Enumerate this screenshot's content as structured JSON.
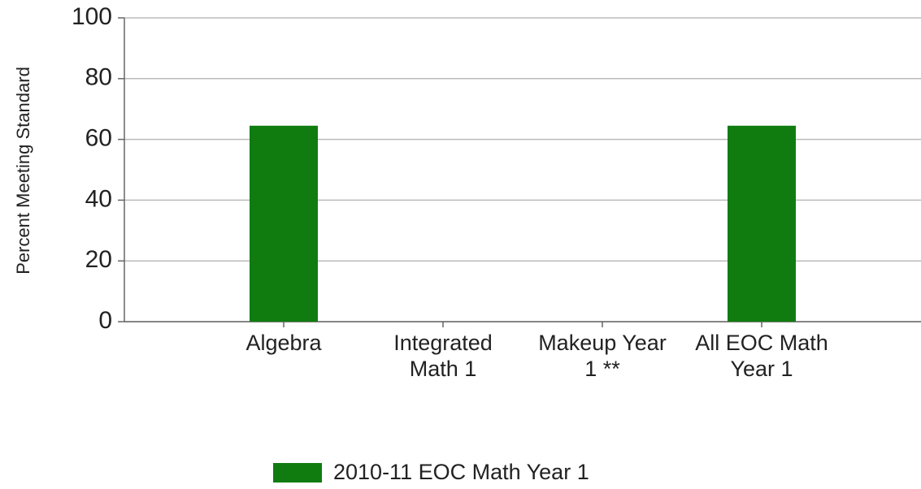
{
  "chart_data": {
    "type": "bar",
    "y_label": "Percent Meeting Standard",
    "categories": [
      "Algebra",
      "Integrated Math 1",
      "Makeup Year 1 **",
      "All EOC Math Year 1"
    ],
    "series": [
      {
        "name": "2010-11 EOC Math Year 1",
        "color": "#107c10",
        "values": [
          64.5,
          null,
          null,
          64.5
        ]
      }
    ],
    "ylim": [
      0,
      100
    ],
    "yticks": [
      0,
      20,
      40,
      60,
      80,
      100
    ],
    "grid": true,
    "legend": "bottom"
  }
}
